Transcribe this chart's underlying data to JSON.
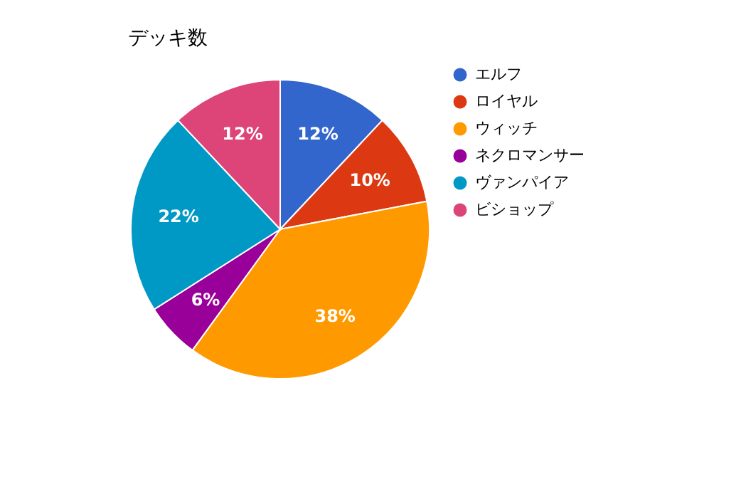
{
  "chart_data": {
    "type": "pie",
    "title": "デッキ数",
    "categories": [
      "エルフ",
      "ロイヤル",
      "ウィッチ",
      "ネクロマンサー",
      "ヴァンパイア",
      "ビショップ"
    ],
    "values": [
      12,
      10,
      38,
      6,
      22,
      12
    ],
    "colors": [
      "#3366cc",
      "#dc3912",
      "#ff9900",
      "#990099",
      "#0099c6",
      "#dd4477"
    ],
    "value_labels": [
      "12%",
      "10%",
      "38%",
      "6%",
      "22%",
      "12%"
    ],
    "legend": "right"
  }
}
